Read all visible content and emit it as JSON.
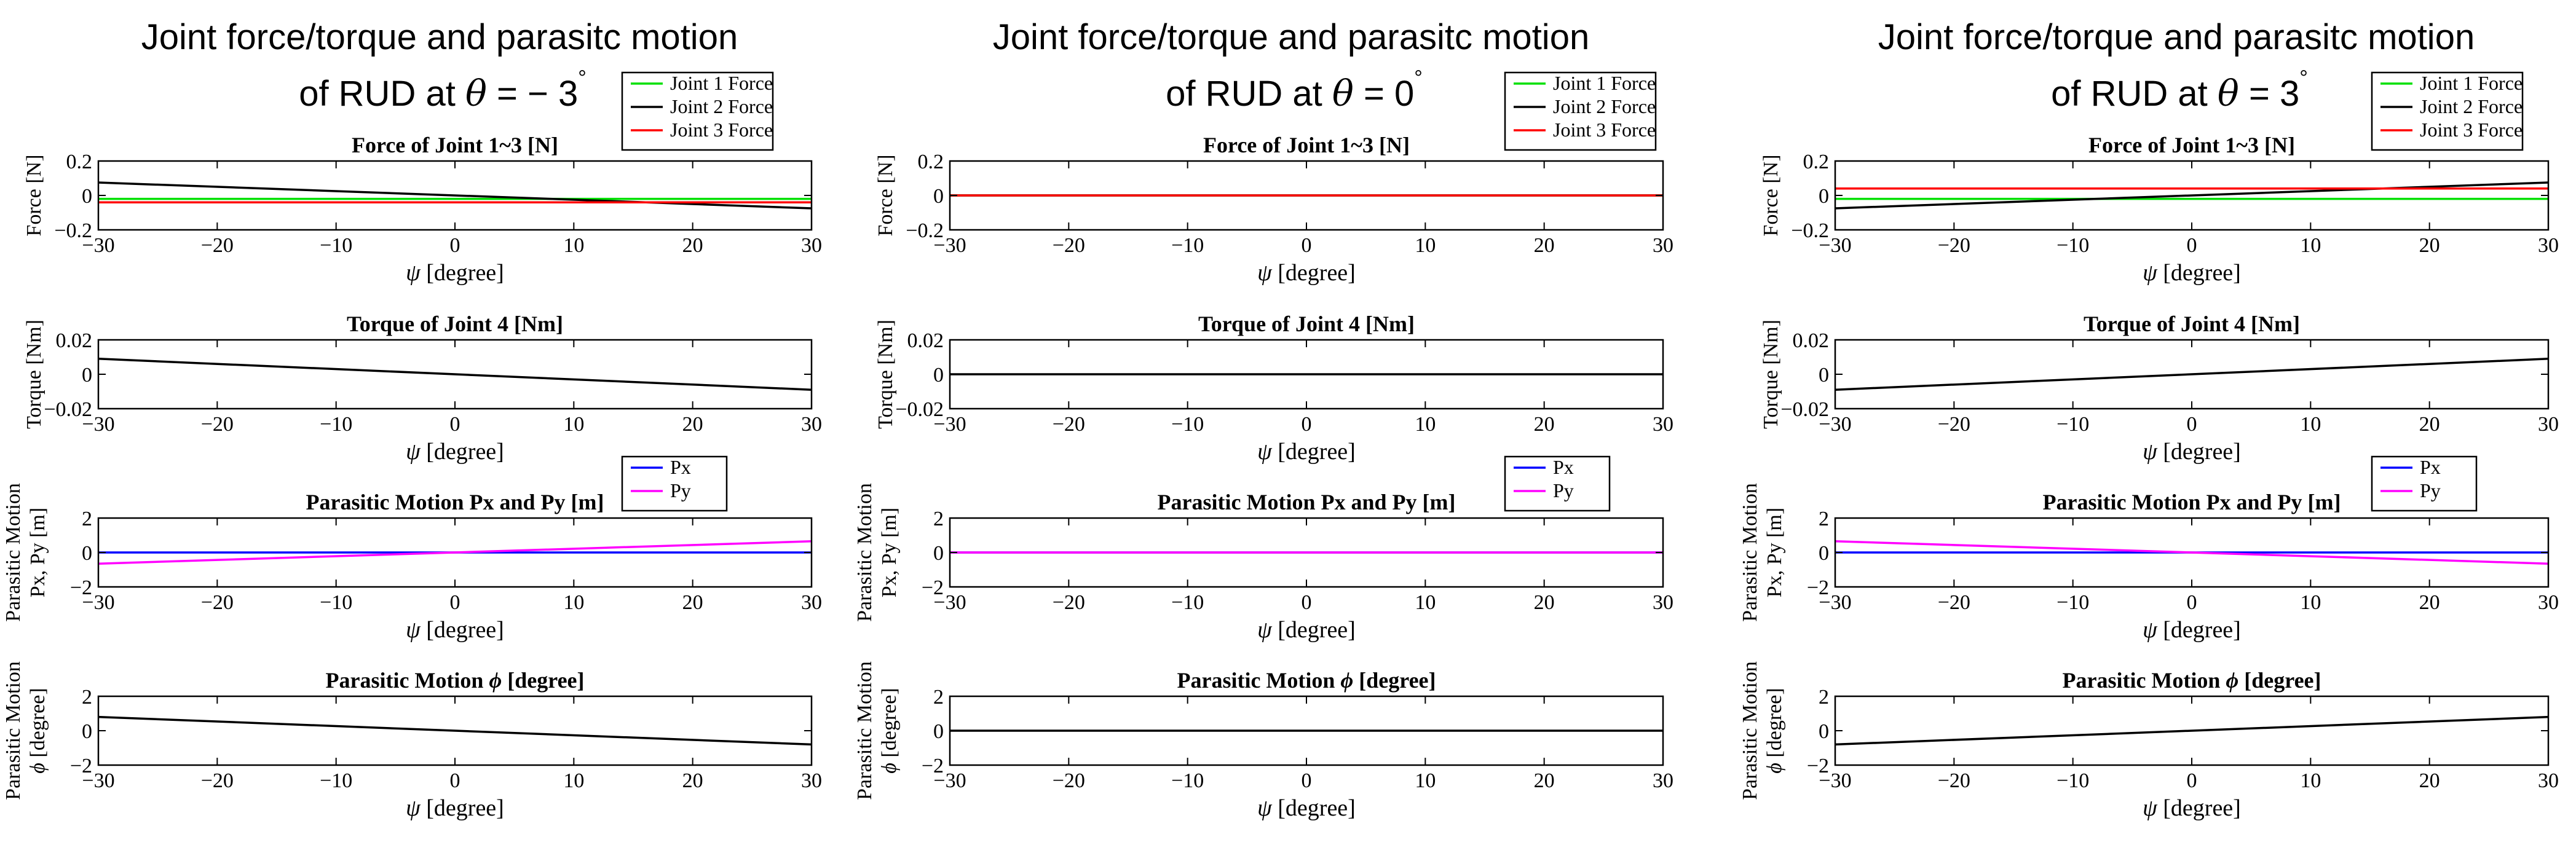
{
  "figure": {
    "columns": [
      {
        "title_line1": "Joint force/torque and parasitc motion",
        "title_line2_prefix": "of RUD at ",
        "title_theta_symbol": "θ",
        "title_line2_eq": " = − 3",
        "title_degree_symbol": "°"
      },
      {
        "title_line1": "Joint force/torque and parasitc motion",
        "title_line2_prefix": "of RUD at ",
        "title_theta_symbol": "θ",
        "title_line2_eq": " = 0",
        "title_degree_symbol": "°"
      },
      {
        "title_line1": "Joint force/torque and parasitc motion",
        "title_line2_prefix": "of RUD at ",
        "title_theta_symbol": "θ",
        "title_line2_eq": " = 3",
        "title_degree_symbol": "°"
      }
    ]
  },
  "chart_data": [
    {
      "column": 0,
      "row": 0,
      "type": "line",
      "title": "Force of Joint 1~3 [N]",
      "ylabel": "Force [N]",
      "xlabel_symbol": "ψ",
      "xlabel_unit": " [degree]",
      "xlim": [
        -30,
        30
      ],
      "ylim": [
        -0.2,
        0.2
      ],
      "xticks": [
        -30,
        -20,
        -10,
        0,
        10,
        20,
        30
      ],
      "yticks": [
        -0.2,
        0,
        0.2
      ],
      "xtick_labels": [
        "−30",
        "−20",
        "−10",
        "0",
        "10",
        "20",
        "30"
      ],
      "ytick_labels": [
        "−0.2",
        "0",
        "0.2"
      ],
      "legend_placement": "top-right-outside",
      "series": [
        {
          "name": "Joint 1 Force",
          "color": "#00e000",
          "x": [
            -30,
            30
          ],
          "y": [
            -0.02,
            -0.02
          ]
        },
        {
          "name": "Joint 2 Force",
          "color": "#000000",
          "x": [
            -30,
            30
          ],
          "y": [
            0.075,
            -0.075
          ]
        },
        {
          "name": "Joint 3 Force",
          "color": "#ff0000",
          "x": [
            -30,
            30
          ],
          "y": [
            -0.04,
            -0.04
          ]
        }
      ]
    },
    {
      "column": 0,
      "row": 1,
      "type": "line",
      "title": "Torque of Joint 4 [Nm]",
      "ylabel": "Torque [Nm]",
      "xlabel_symbol": "ψ",
      "xlabel_unit": " [degree]",
      "xlim": [
        -30,
        30
      ],
      "ylim": [
        -0.02,
        0.02
      ],
      "xticks": [
        -30,
        -20,
        -10,
        0,
        10,
        20,
        30
      ],
      "yticks": [
        -0.02,
        0,
        0.02
      ],
      "xtick_labels": [
        "−30",
        "−20",
        "−10",
        "0",
        "10",
        "20",
        "30"
      ],
      "ytick_labels": [
        "−0.02",
        "0",
        "0.02"
      ],
      "series": [
        {
          "color": "#000000",
          "x": [
            -30,
            30
          ],
          "y": [
            0.009,
            -0.009
          ]
        }
      ]
    },
    {
      "column": 0,
      "row": 2,
      "type": "line",
      "title": "Parasitic Motion Px and Py [m]",
      "ylabel_line1": "Parasitic Motion",
      "ylabel_line2": "Px, Py [m]",
      "xlabel_symbol": "ψ",
      "xlabel_unit": " [degree]",
      "xlim": [
        -30,
        30
      ],
      "ylim": [
        -2,
        2
      ],
      "xticks": [
        -30,
        -20,
        -10,
        0,
        10,
        20,
        30
      ],
      "yticks": [
        -2,
        0,
        2
      ],
      "xtick_labels": [
        "−30",
        "−20",
        "−10",
        "0",
        "10",
        "20",
        "30"
      ],
      "ytick_labels": [
        "−2",
        "0",
        "2"
      ],
      "legend_placement": "top-right-outside",
      "series": [
        {
          "name": "Px",
          "color": "#0000ff",
          "x": [
            -30,
            30
          ],
          "y": [
            0,
            0
          ]
        },
        {
          "name": "Py",
          "color": "#ff00ff",
          "x": [
            -30,
            30
          ],
          "y": [
            -0.65,
            0.65
          ]
        }
      ]
    },
    {
      "column": 0,
      "row": 3,
      "type": "line",
      "title_text": "Parasitic Motion ",
      "title_symbol": "ϕ",
      "title_unit": " [degree]",
      "ylabel_line1": "Parasitic Motion",
      "ylabel_symbol": "ϕ",
      "ylabel_unit": " [degree]",
      "xlabel_symbol": "ψ",
      "xlabel_unit": " [degree]",
      "xlim": [
        -30,
        30
      ],
      "ylim": [
        -2,
        2
      ],
      "xticks": [
        -30,
        -20,
        -10,
        0,
        10,
        20,
        30
      ],
      "yticks": [
        -2,
        0,
        2
      ],
      "xtick_labels": [
        "−30",
        "−20",
        "−10",
        "0",
        "10",
        "20",
        "30"
      ],
      "ytick_labels": [
        "−2",
        "0",
        "2"
      ],
      "series": [
        {
          "color": "#000000",
          "x": [
            -30,
            30
          ],
          "y": [
            0.8,
            -0.8
          ]
        }
      ]
    },
    {
      "column": 1,
      "row": 0,
      "type": "line",
      "title": "Force of Joint 1~3 [N]",
      "ylabel": "Force [N]",
      "xlabel_symbol": "ψ",
      "xlabel_unit": " [degree]",
      "xlim": [
        -30,
        30
      ],
      "ylim": [
        -0.2,
        0.2
      ],
      "xticks": [
        -30,
        -20,
        -10,
        0,
        10,
        20,
        30
      ],
      "yticks": [
        -0.2,
        0,
        0.2
      ],
      "xtick_labels": [
        "−30",
        "−20",
        "−10",
        "0",
        "10",
        "20",
        "30"
      ],
      "ytick_labels": [
        "−0.2",
        "0",
        "0.2"
      ],
      "legend_placement": "top-right-outside",
      "series": [
        {
          "name": "Joint 1 Force",
          "color": "#00e000",
          "x": [
            -30,
            30
          ],
          "y": [
            0,
            0
          ]
        },
        {
          "name": "Joint 2 Force",
          "color": "#000000",
          "x": [
            -30,
            30
          ],
          "y": [
            0,
            0
          ]
        },
        {
          "name": "Joint 3 Force",
          "color": "#ff0000",
          "x": [
            -30,
            30
          ],
          "y": [
            0,
            0
          ]
        }
      ]
    },
    {
      "column": 1,
      "row": 1,
      "type": "line",
      "title": "Torque of Joint 4 [Nm]",
      "ylabel": "Torque [Nm]",
      "xlabel_symbol": "ψ",
      "xlabel_unit": " [degree]",
      "xlim": [
        -30,
        30
      ],
      "ylim": [
        -0.02,
        0.02
      ],
      "xticks": [
        -30,
        -20,
        -10,
        0,
        10,
        20,
        30
      ],
      "yticks": [
        -0.02,
        0,
        0.02
      ],
      "xtick_labels": [
        "−30",
        "−20",
        "−10",
        "0",
        "10",
        "20",
        "30"
      ],
      "ytick_labels": [
        "−0.02",
        "0",
        "0.02"
      ],
      "series": [
        {
          "color": "#000000",
          "x": [
            -30,
            30
          ],
          "y": [
            0,
            0
          ]
        }
      ]
    },
    {
      "column": 1,
      "row": 2,
      "type": "line",
      "title": "Parasitic Motion Px and Py [m]",
      "ylabel_line1": "Parasitic Motion",
      "ylabel_line2": "Px, Py [m]",
      "xlabel_symbol": "ψ",
      "xlabel_unit": " [degree]",
      "xlim": [
        -30,
        30
      ],
      "ylim": [
        -2,
        2
      ],
      "xticks": [
        -30,
        -20,
        -10,
        0,
        10,
        20,
        30
      ],
      "yticks": [
        -2,
        0,
        2
      ],
      "xtick_labels": [
        "−30",
        "−20",
        "−10",
        "0",
        "10",
        "20",
        "30"
      ],
      "ytick_labels": [
        "−2",
        "0",
        "2"
      ],
      "legend_placement": "top-right-outside",
      "series": [
        {
          "name": "Px",
          "color": "#0000ff",
          "x": [
            -30,
            30
          ],
          "y": [
            0,
            0
          ]
        },
        {
          "name": "Py",
          "color": "#ff00ff",
          "x": [
            -30,
            30
          ],
          "y": [
            0,
            0
          ]
        }
      ]
    },
    {
      "column": 1,
      "row": 3,
      "type": "line",
      "title_text": "Parasitic Motion ",
      "title_symbol": "ϕ",
      "title_unit": " [degree]",
      "ylabel_line1": "Parasitic Motion",
      "ylabel_symbol": "ϕ",
      "ylabel_unit": " [degree]",
      "xlabel_symbol": "ψ",
      "xlabel_unit": " [degree]",
      "xlim": [
        -30,
        30
      ],
      "ylim": [
        -2,
        2
      ],
      "xticks": [
        -30,
        -20,
        -10,
        0,
        10,
        20,
        30
      ],
      "yticks": [
        -2,
        0,
        2
      ],
      "xtick_labels": [
        "−30",
        "−20",
        "−10",
        "0",
        "10",
        "20",
        "30"
      ],
      "ytick_labels": [
        "−2",
        "0",
        "2"
      ],
      "series": [
        {
          "color": "#000000",
          "x": [
            -30,
            30
          ],
          "y": [
            0,
            0
          ]
        }
      ]
    },
    {
      "column": 2,
      "row": 0,
      "type": "line",
      "title": "Force of Joint 1~3 [N]",
      "ylabel": "Force [N]",
      "xlabel_symbol": "ψ",
      "xlabel_unit": " [degree]",
      "xlim": [
        -30,
        30
      ],
      "ylim": [
        -0.2,
        0.2
      ],
      "xticks": [
        -30,
        -20,
        -10,
        0,
        10,
        20,
        30
      ],
      "yticks": [
        -0.2,
        0,
        0.2
      ],
      "xtick_labels": [
        "−30",
        "−20",
        "−10",
        "0",
        "10",
        "20",
        "30"
      ],
      "ytick_labels": [
        "−0.2",
        "0",
        "0.2"
      ],
      "legend_placement": "top-right-outside",
      "series": [
        {
          "name": "Joint 1 Force",
          "color": "#00e000",
          "x": [
            -30,
            30
          ],
          "y": [
            -0.02,
            -0.02
          ]
        },
        {
          "name": "Joint 2 Force",
          "color": "#000000",
          "x": [
            -30,
            30
          ],
          "y": [
            -0.075,
            0.075
          ]
        },
        {
          "name": "Joint 3 Force",
          "color": "#ff0000",
          "x": [
            -30,
            30
          ],
          "y": [
            0.04,
            0.04
          ]
        }
      ]
    },
    {
      "column": 2,
      "row": 1,
      "type": "line",
      "title": "Torque of Joint 4 [Nm]",
      "ylabel": "Torque [Nm]",
      "xlabel_symbol": "ψ",
      "xlabel_unit": " [degree]",
      "xlim": [
        -30,
        30
      ],
      "ylim": [
        -0.02,
        0.02
      ],
      "xticks": [
        -30,
        -20,
        -10,
        0,
        10,
        20,
        30
      ],
      "yticks": [
        -0.02,
        0,
        0.02
      ],
      "xtick_labels": [
        "−30",
        "−20",
        "−10",
        "0",
        "10",
        "20",
        "30"
      ],
      "ytick_labels": [
        "−0.02",
        "0",
        "0.02"
      ],
      "series": [
        {
          "color": "#000000",
          "x": [
            -30,
            30
          ],
          "y": [
            -0.009,
            0.009
          ]
        }
      ]
    },
    {
      "column": 2,
      "row": 2,
      "type": "line",
      "title": "Parasitic Motion Px and Py [m]",
      "ylabel_line1": "Parasitic Motion",
      "ylabel_line2": "Px, Py [m]",
      "xlabel_symbol": "ψ",
      "xlabel_unit": " [degree]",
      "xlim": [
        -30,
        30
      ],
      "ylim": [
        -2,
        2
      ],
      "xticks": [
        -30,
        -20,
        -10,
        0,
        10,
        20,
        30
      ],
      "yticks": [
        -2,
        0,
        2
      ],
      "xtick_labels": [
        "−30",
        "−20",
        "−10",
        "0",
        "10",
        "20",
        "30"
      ],
      "ytick_labels": [
        "−2",
        "0",
        "2"
      ],
      "legend_placement": "top-right-outside",
      "series": [
        {
          "name": "Px",
          "color": "#0000ff",
          "x": [
            -30,
            30
          ],
          "y": [
            0,
            0
          ]
        },
        {
          "name": "Py",
          "color": "#ff00ff",
          "x": [
            -30,
            30
          ],
          "y": [
            0.65,
            -0.65
          ]
        }
      ]
    },
    {
      "column": 2,
      "row": 3,
      "type": "line",
      "title_text": "Parasitic Motion ",
      "title_symbol": "ϕ",
      "title_unit": " [degree]",
      "ylabel_line1": "Parasitic Motion",
      "ylabel_symbol": "ϕ",
      "ylabel_unit": " [degree]",
      "xlabel_symbol": "ψ",
      "xlabel_unit": " [degree]",
      "xlim": [
        -30,
        30
      ],
      "ylim": [
        -2,
        2
      ],
      "xticks": [
        -30,
        -20,
        -10,
        0,
        10,
        20,
        30
      ],
      "yticks": [
        -2,
        0,
        2
      ],
      "xtick_labels": [
        "−30",
        "−20",
        "−10",
        "0",
        "10",
        "20",
        "30"
      ],
      "ytick_labels": [
        "−2",
        "0",
        "2"
      ],
      "series": [
        {
          "color": "#000000",
          "x": [
            -30,
            30
          ],
          "y": [
            -0.8,
            0.8
          ]
        }
      ]
    }
  ]
}
